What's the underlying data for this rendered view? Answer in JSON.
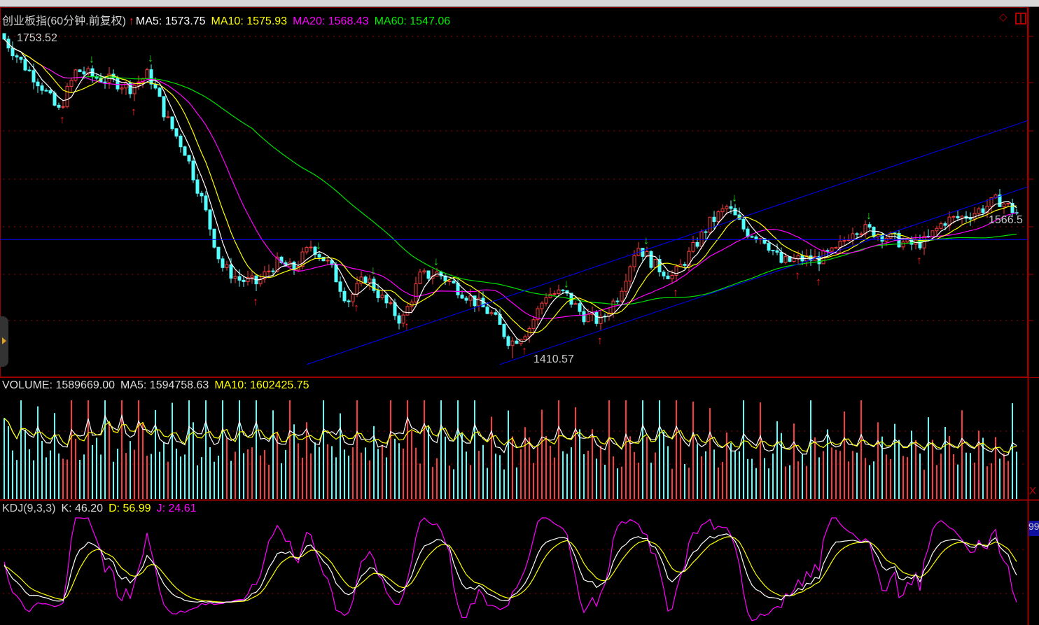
{
  "header": {
    "title": "创业板指(60分钟.前复权)",
    "arrow_icon": "red-up-arrow-icon",
    "ma5": "MA5: 1573.75",
    "ma10": "MA10: 1575.93",
    "ma20": "MA20: 1568.43",
    "ma60": "MA60: 1547.06"
  },
  "price_panel": {
    "high_label": "1753.52",
    "low_label": "1410.57",
    "last_label": "1566.5"
  },
  "volume_panel": {
    "volume": "VOLUME: 1589669.00",
    "ma5": "MA5: 1594758.63",
    "ma10": "MA10: 1602425.75"
  },
  "kdj_panel": {
    "name": "KDJ(9,3,3)",
    "k": "K: 46.20",
    "d": "D: 56.99",
    "j": "J: 24.61",
    "axis_badge": "99"
  },
  "colors": {
    "up": "#ff3c3c",
    "down": "#54ffff",
    "ma5": "#ffffff",
    "ma10": "#ffff00",
    "ma20": "#ff00ff",
    "ma60": "#00e000",
    "trendline": "#0000ff",
    "grid": "#a00000"
  },
  "chart_data": {
    "type": "candlestick",
    "interval": "60 minutes",
    "price_range": [
      1410.57,
      1753.52
    ],
    "close_path": [
      1753,
      1727,
      1705,
      1675,
      1720,
      1712,
      1708,
      1701,
      1716,
      1667,
      1633,
      1577,
      1510,
      1495,
      1491,
      1513,
      1506,
      1532,
      1510,
      1472,
      1498,
      1472,
      1450,
      1498,
      1502,
      1487,
      1472,
      1457,
      1427,
      1442,
      1480,
      1480,
      1457,
      1450,
      1480,
      1532,
      1510,
      1498,
      1525,
      1555,
      1573,
      1547,
      1540,
      1513,
      1517,
      1517,
      1525,
      1551,
      1547,
      1540,
      1532,
      1536,
      1558,
      1562,
      1570,
      1581,
      1566.5
    ],
    "horizontal_line": 1538,
    "trendlines": [
      {
        "from": [
          72,
          1404
        ],
        "to": [
          244,
          1666
        ]
      },
      {
        "from": [
          118,
          1404
        ],
        "to": [
          244,
          1595
        ]
      }
    ],
    "indicators": [
      "MA5",
      "MA10",
      "MA20",
      "MA60",
      "VOLUME",
      "KDJ(9,3,3)"
    ]
  }
}
